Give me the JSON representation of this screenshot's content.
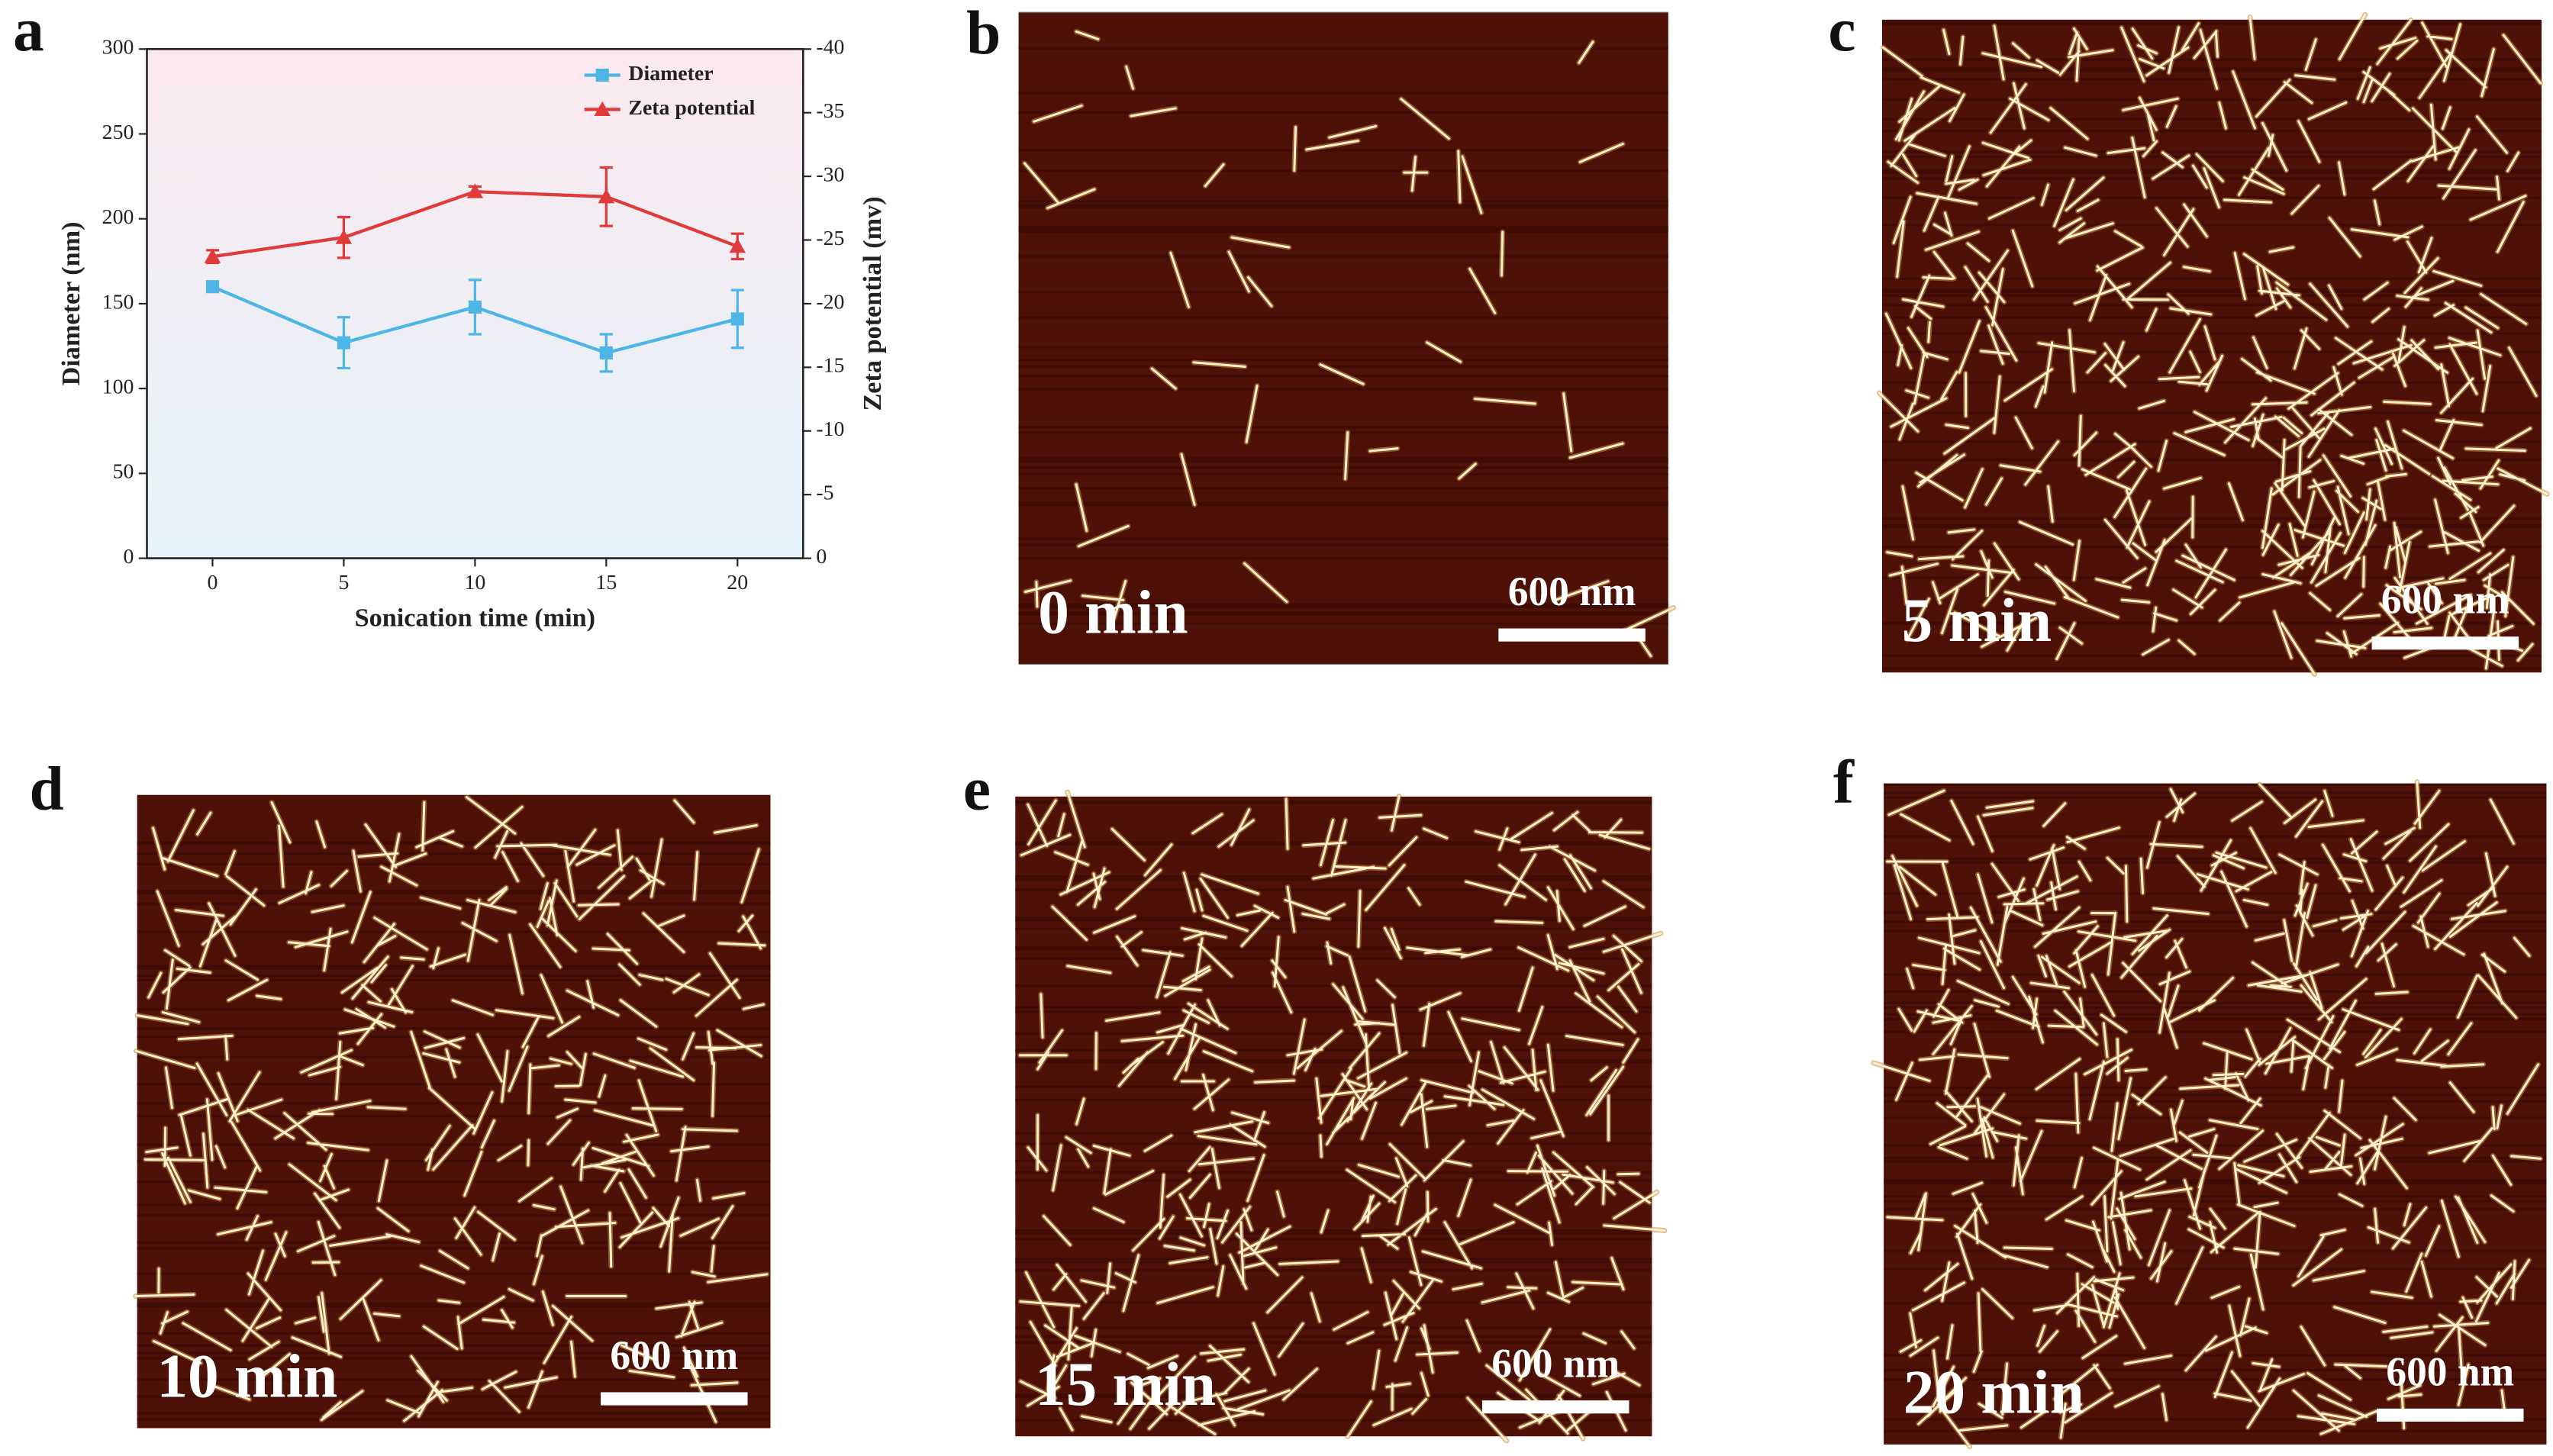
{
  "figure_label": "a",
  "chart_data": {
    "type": "line",
    "xlabel": "Sonication time (min)",
    "ylabel": "Diameter (nm)",
    "y2label": "Zeta potential (mv)",
    "x": [
      0,
      5,
      10,
      15,
      20
    ],
    "xlim": [
      -2.5,
      22.5
    ],
    "xticks": [
      0,
      5,
      10,
      15,
      20
    ],
    "ylim": [
      0,
      300
    ],
    "yticks": [
      0,
      50,
      100,
      150,
      200,
      250,
      300
    ],
    "y2lim": [
      0,
      -40
    ],
    "y2ticks": [
      0,
      -5,
      -10,
      -15,
      -20,
      -25,
      -30,
      -35,
      -40
    ],
    "legend": "upper right",
    "series": [
      {
        "name": "Diameter",
        "color": "#4db6e6",
        "marker": "square",
        "values": [
          160,
          127,
          148,
          121,
          141
        ],
        "errors": [
          2,
          15,
          16,
          11,
          17
        ]
      },
      {
        "name": "Zeta potential",
        "color": "#e03a3a",
        "marker": "triangle",
        "axis": "y2",
        "values": [
          -23.7,
          -25.2,
          -28.8,
          -28.4,
          -24.5
        ],
        "errors": [
          0.5,
          1.6,
          0.4,
          2.3,
          1.0
        ]
      }
    ]
  },
  "panels": [
    {
      "label": "b",
      "time": "0 min",
      "scale": "600 nm"
    },
    {
      "label": "c",
      "time": "5 min",
      "scale": "600 nm"
    },
    {
      "label": "d",
      "time": "10 min",
      "scale": "600 nm"
    },
    {
      "label": "e",
      "time": "15 min",
      "scale": "600 nm"
    },
    {
      "label": "f",
      "time": "20 min",
      "scale": "600 nm"
    }
  ]
}
